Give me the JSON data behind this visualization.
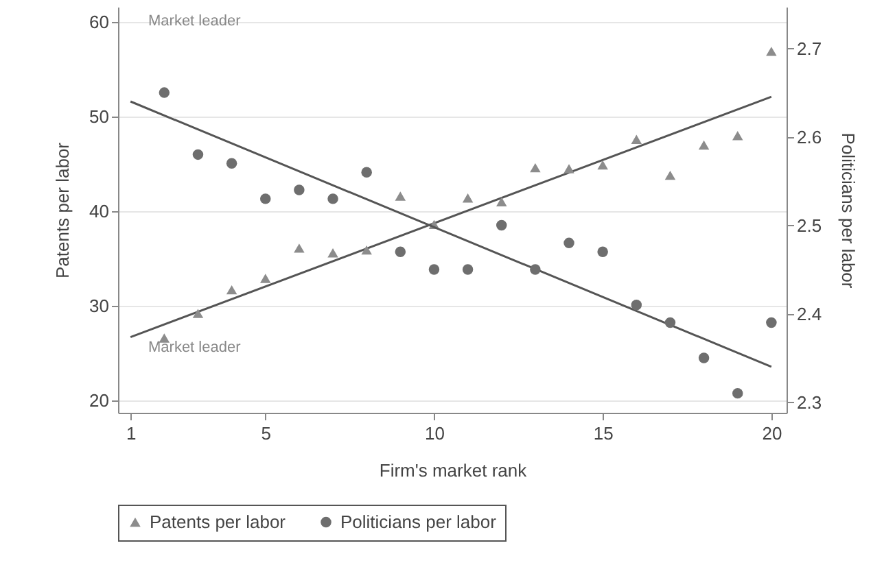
{
  "chart_data": {
    "type": "scatter",
    "xlabel": "Firm's market rank",
    "ylabel": "Patents per labor",
    "y2label": "Politicians per labor",
    "xlim": [
      0.63,
      20.45
    ],
    "xticks": [
      1,
      5,
      10,
      15,
      20
    ],
    "ylim": [
      18.7,
      61.6
    ],
    "yticks": [
      20,
      30,
      40,
      50,
      60
    ],
    "y2lim": [
      2.288,
      2.747
    ],
    "y2ticks": [
      2.3,
      2.4,
      2.5,
      2.6,
      2.7
    ],
    "grid": "y",
    "legend": "bottom",
    "series": [
      {
        "name": "Patents per labor",
        "marker": "triangle",
        "color": "#8c8c8c",
        "x": [
          2,
          3,
          4,
          5,
          6,
          7,
          8,
          9,
          10,
          11,
          12,
          13,
          14,
          15,
          16,
          17,
          18,
          19,
          20
        ],
        "values": [
          26.6,
          29.2,
          31.7,
          32.9,
          36.1,
          35.6,
          35.9,
          41.6,
          38.6,
          41.4,
          41.0,
          44.6,
          44.5,
          44.9,
          47.6,
          43.8,
          47.0,
          48.0,
          56.9
        ]
      },
      {
        "name": "Politicians per labor",
        "marker": "circle",
        "axis": "y2",
        "color": "#6e6e6e",
        "x": [
          2,
          3,
          4,
          5,
          6,
          7,
          8,
          9,
          10,
          11,
          12,
          13,
          14,
          15,
          16,
          17,
          18,
          19,
          20
        ],
        "values": [
          2.65,
          2.58,
          2.57,
          2.53,
          2.54,
          2.53,
          2.56,
          2.47,
          2.45,
          2.45,
          2.5,
          2.45,
          2.48,
          2.47,
          2.41,
          2.39,
          2.35,
          2.31,
          2.39
        ]
      },
      {
        "type": "line",
        "color": "#555555",
        "x": [
          1,
          20
        ],
        "values": [
          26.7,
          52.1
        ]
      },
      {
        "type": "line",
        "axis": "y2",
        "color": "#555555",
        "x": [
          1,
          20
        ],
        "values": [
          2.64,
          2.34
        ]
      }
    ],
    "annotations": [
      "Market leader",
      "Market leader"
    ]
  }
}
